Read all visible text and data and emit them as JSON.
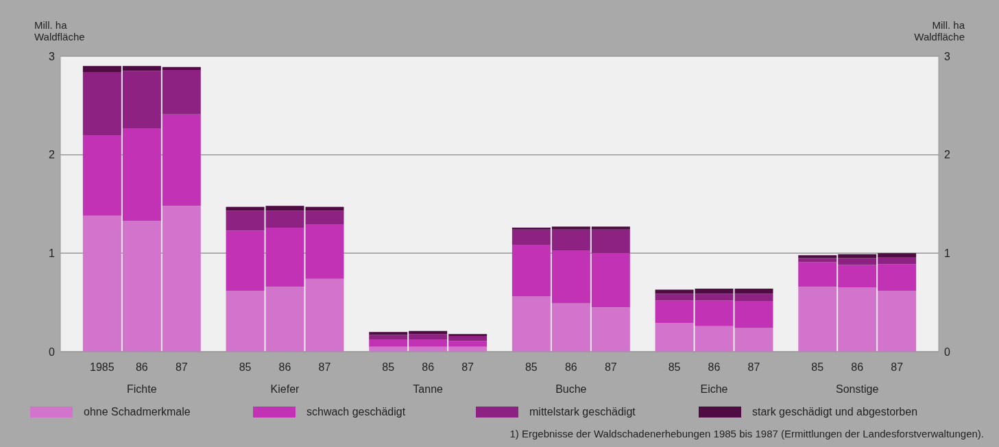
{
  "chart_data": {
    "type": "bar",
    "stacked": true,
    "categories": [
      "1985",
      "86",
      "87",
      "85",
      "86",
      "87",
      "85",
      "86",
      "87",
      "85",
      "86",
      "87",
      "85",
      "86",
      "87",
      "85",
      "86",
      "87"
    ],
    "series": [
      {
        "name": "ohne Schadmerkmale",
        "color": "#d274cc",
        "values": [
          1.38,
          1.33,
          1.48,
          0.62,
          0.66,
          0.74,
          0.05,
          0.05,
          0.05,
          0.56,
          0.49,
          0.45,
          0.29,
          0.26,
          0.24,
          0.66,
          0.65,
          0.62
        ]
      },
      {
        "name": "schwach geschädigt",
        "color": "#c232b4",
        "values": [
          0.82,
          0.94,
          0.93,
          0.61,
          0.6,
          0.55,
          0.07,
          0.07,
          0.06,
          0.52,
          0.54,
          0.55,
          0.23,
          0.26,
          0.27,
          0.25,
          0.23,
          0.27
        ]
      },
      {
        "name": "mittelstark geschädigt",
        "color": "#8e2283",
        "values": [
          0.64,
          0.58,
          0.45,
          0.2,
          0.17,
          0.14,
          0.05,
          0.06,
          0.05,
          0.16,
          0.21,
          0.24,
          0.07,
          0.07,
          0.08,
          0.04,
          0.07,
          0.07
        ]
      },
      {
        "name": "stark geschädigt und abgestorben",
        "color": "#4e0c42",
        "values": [
          0.06,
          0.05,
          0.03,
          0.04,
          0.05,
          0.04,
          0.03,
          0.03,
          0.02,
          0.02,
          0.03,
          0.03,
          0.04,
          0.05,
          0.05,
          0.03,
          0.04,
          0.04
        ]
      }
    ],
    "ylabel": "Mill. ha Waldfläche",
    "y2label": "Mill. ha Waldfläche",
    "ylim": [
      0,
      3
    ],
    "yticks": [
      0,
      1,
      2,
      3
    ],
    "y2lim": [
      0,
      3
    ],
    "y2ticks": [
      0,
      1,
      2,
      3
    ],
    "grid": "y",
    "legend": "bottom",
    "annotations": [
      "Fichte",
      "Kiefer",
      "Tanne",
      "Buche",
      "Eiche",
      "Sonstige",
      "1) Ergebnisse der Waldschadenerhebungen 1985 bis 1987 (Ermittlungen der Landesforstverwaltungen)."
    ]
  }
}
